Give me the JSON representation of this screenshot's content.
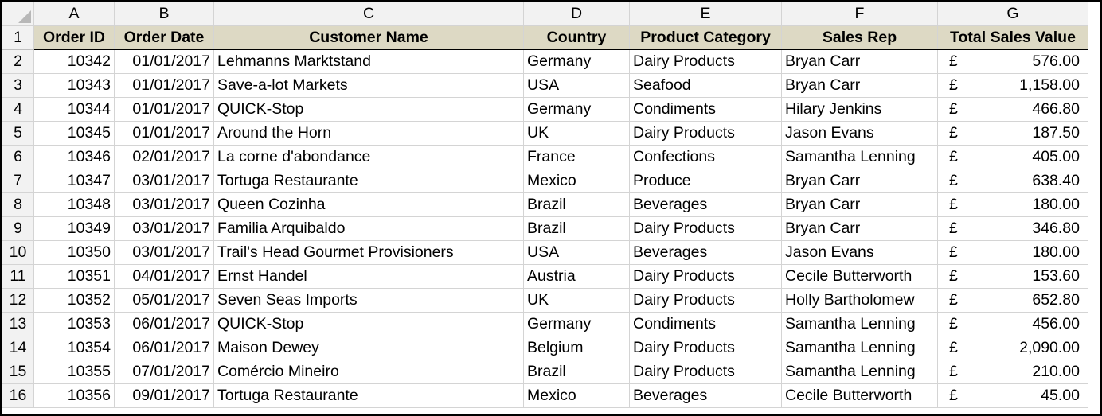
{
  "sheet": {
    "column_letters": [
      "A",
      "B",
      "C",
      "D",
      "E",
      "F",
      "G"
    ],
    "headers": [
      "Order ID",
      "Order Date",
      "Customer Name",
      "Country",
      "Product Category",
      "Sales Rep",
      "Total Sales Value"
    ],
    "header_row_number": "1",
    "currency_symbol": "£",
    "rows": [
      {
        "n": "2",
        "id": "10342",
        "date": "01/01/2017",
        "customer": "Lehmanns Marktstand",
        "country": "Germany",
        "category": "Dairy Products",
        "rep": "Bryan Carr",
        "value": "576.00"
      },
      {
        "n": "3",
        "id": "10343",
        "date": "01/01/2017",
        "customer": "Save-a-lot Markets",
        "country": "USA",
        "category": "Seafood",
        "rep": "Bryan Carr",
        "value": "1,158.00"
      },
      {
        "n": "4",
        "id": "10344",
        "date": "01/01/2017",
        "customer": "QUICK-Stop",
        "country": "Germany",
        "category": "Condiments",
        "rep": "Hilary Jenkins",
        "value": "466.80"
      },
      {
        "n": "5",
        "id": "10345",
        "date": "01/01/2017",
        "customer": "Around the Horn",
        "country": "UK",
        "category": "Dairy Products",
        "rep": "Jason Evans",
        "value": "187.50"
      },
      {
        "n": "6",
        "id": "10346",
        "date": "02/01/2017",
        "customer": "La corne d'abondance",
        "country": "France",
        "category": "Confections",
        "rep": "Samantha Lenning",
        "value": "405.00"
      },
      {
        "n": "7",
        "id": "10347",
        "date": "03/01/2017",
        "customer": "Tortuga Restaurante",
        "country": "Mexico",
        "category": "Produce",
        "rep": "Bryan Carr",
        "value": "638.40"
      },
      {
        "n": "8",
        "id": "10348",
        "date": "03/01/2017",
        "customer": "Queen Cozinha",
        "country": "Brazil",
        "category": "Beverages",
        "rep": "Bryan Carr",
        "value": "180.00"
      },
      {
        "n": "9",
        "id": "10349",
        "date": "03/01/2017",
        "customer": "Familia Arquibaldo",
        "country": "Brazil",
        "category": "Dairy Products",
        "rep": "Bryan Carr",
        "value": "346.80"
      },
      {
        "n": "10",
        "id": "10350",
        "date": "03/01/2017",
        "customer": "Trail's Head Gourmet Provisioners",
        "country": "USA",
        "category": "Beverages",
        "rep": "Jason Evans",
        "value": "180.00"
      },
      {
        "n": "11",
        "id": "10351",
        "date": "04/01/2017",
        "customer": "Ernst Handel",
        "country": "Austria",
        "category": "Dairy Products",
        "rep": "Cecile Butterworth",
        "value": "153.60"
      },
      {
        "n": "12",
        "id": "10352",
        "date": "05/01/2017",
        "customer": "Seven Seas Imports",
        "country": "UK",
        "category": "Dairy Products",
        "rep": "Holly Bartholomew",
        "value": "652.80"
      },
      {
        "n": "13",
        "id": "10353",
        "date": "06/01/2017",
        "customer": "QUICK-Stop",
        "country": "Germany",
        "category": "Condiments",
        "rep": "Samantha Lenning",
        "value": "456.00"
      },
      {
        "n": "14",
        "id": "10354",
        "date": "06/01/2017",
        "customer": "Maison Dewey",
        "country": "Belgium",
        "category": "Dairy Products",
        "rep": "Samantha Lenning",
        "value": "2,090.00"
      },
      {
        "n": "15",
        "id": "10355",
        "date": "07/01/2017",
        "customer": "Comércio Mineiro",
        "country": "Brazil",
        "category": "Dairy Products",
        "rep": "Samantha Lenning",
        "value": "210.00"
      },
      {
        "n": "16",
        "id": "10356",
        "date": "09/01/2017",
        "customer": "Tortuga Restaurante",
        "country": "Mexico",
        "category": "Beverages",
        "rep": "Cecile Butterworth",
        "value": "45.00"
      }
    ]
  }
}
